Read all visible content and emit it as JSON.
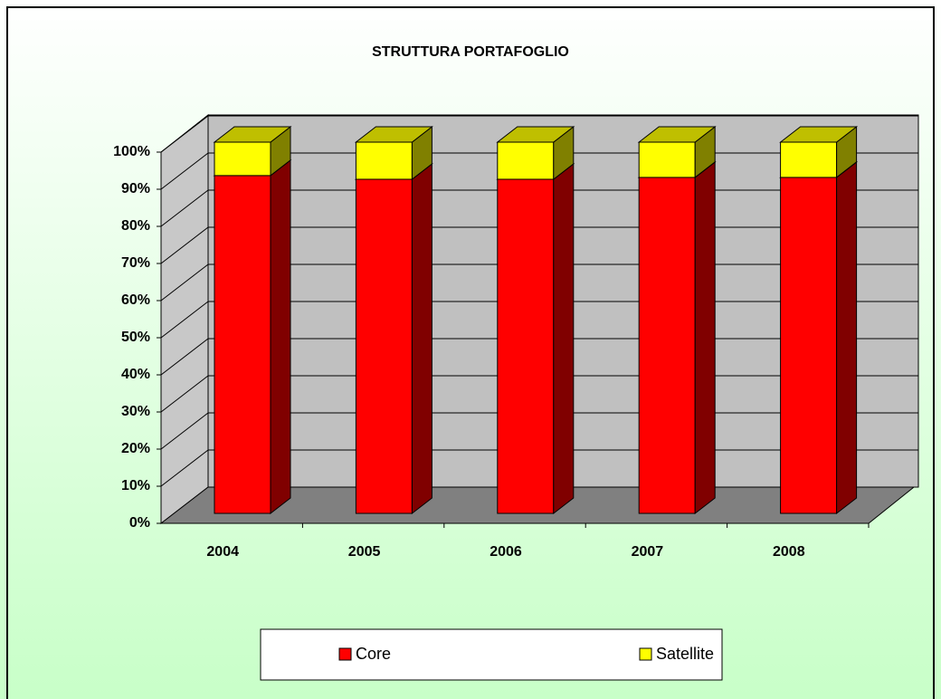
{
  "chart_data": {
    "type": "bar",
    "stacked": true,
    "title": "STRUTTURA PORTAFOGLIO",
    "categories": [
      "2004",
      "2005",
      "2006",
      "2007",
      "2008"
    ],
    "series": [
      {
        "name": "Core",
        "color": "#ff0000",
        "values": [
          91,
          90,
          90,
          90.5,
          90.5
        ]
      },
      {
        "name": "Satellite",
        "color": "#ffff00",
        "values": [
          9,
          10,
          10,
          9.5,
          9.5
        ]
      }
    ],
    "ylim": [
      0,
      100
    ],
    "yticks": [
      {
        "value": 0,
        "label": "0%"
      },
      {
        "value": 10,
        "label": "10%"
      },
      {
        "value": 20,
        "label": "20%"
      },
      {
        "value": 30,
        "label": "30%"
      },
      {
        "value": 40,
        "label": "40%"
      },
      {
        "value": 50,
        "label": "50%"
      },
      {
        "value": 60,
        "label": "60%"
      },
      {
        "value": 70,
        "label": "70%"
      },
      {
        "value": 80,
        "label": "80%"
      },
      {
        "value": 90,
        "label": "90%"
      },
      {
        "value": 100,
        "label": "100%"
      }
    ],
    "grid": true,
    "legend": "bottom"
  }
}
